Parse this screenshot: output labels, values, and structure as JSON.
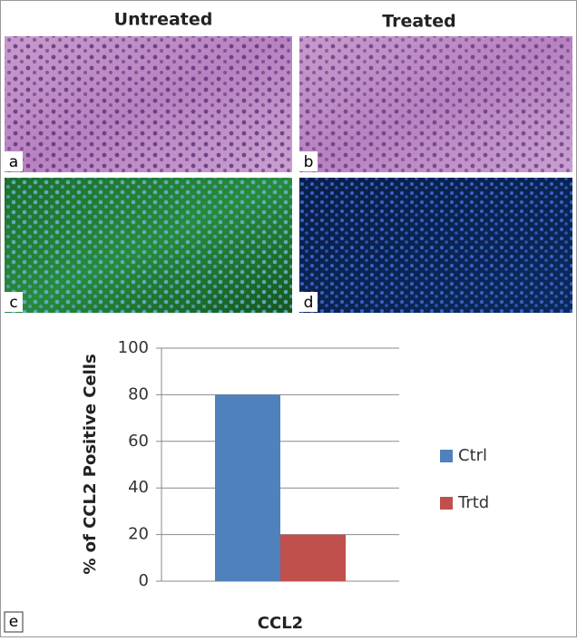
{
  "figure": {
    "column_titles": [
      "Untreated",
      "Treated"
    ],
    "panel_labels": [
      "a",
      "b",
      "c",
      "d",
      "e"
    ]
  },
  "chart_data": {
    "type": "bar",
    "categories": [
      "CCL2"
    ],
    "ylabel": "% of CCL2 Positive Cells",
    "series": [
      {
        "name": "Ctrl",
        "color": "#4f81bd",
        "values": [
          80
        ]
      },
      {
        "name": "Trtd",
        "color": "#c0504d",
        "values": [
          20
        ]
      }
    ],
    "ylim": [
      0,
      100
    ],
    "yticks": [
      0,
      20,
      40,
      60,
      80,
      100
    ],
    "grid": true,
    "legend": "right"
  }
}
